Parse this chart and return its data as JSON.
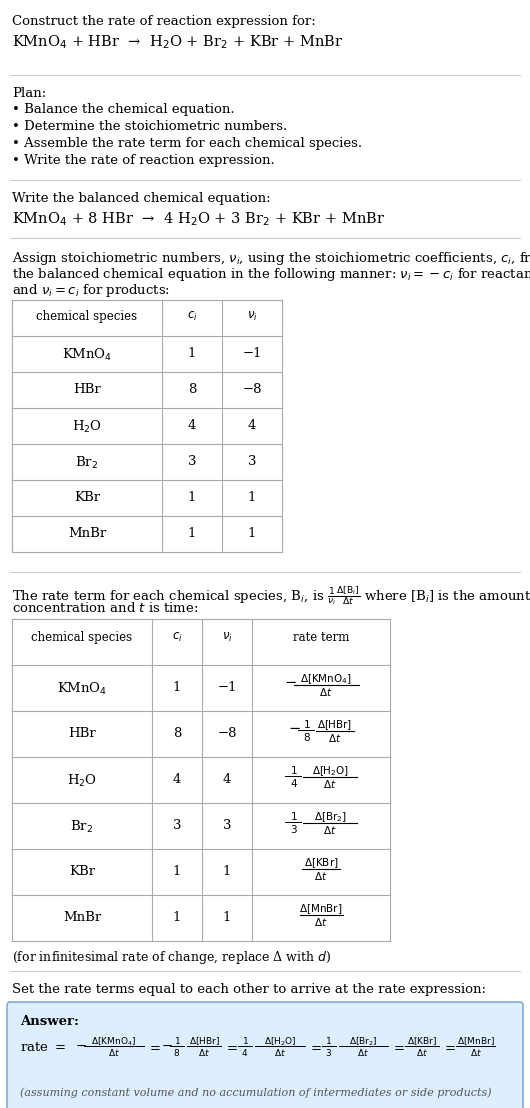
{
  "title_line1": "Construct the rate of reaction expression for:",
  "reaction_unbalanced": "KMnO$_4$ + HBr  →  H$_2$O + Br$_2$ + KBr + MnBr",
  "plan_header": "Plan:",
  "plan_items": [
    "• Balance the chemical equation.",
    "• Determine the stoichiometric numbers.",
    "• Assemble the rate term for each chemical species.",
    "• Write the rate of reaction expression."
  ],
  "balanced_header": "Write the balanced chemical equation:",
  "reaction_balanced": "KMnO$_4$ + 8 HBr  →  4 H$_2$O + 3 Br$_2$ + KBr + MnBr",
  "stoich_intro1": "Assign stoichiometric numbers, $\\nu_i$, using the stoichiometric coefficients, $c_i$, from",
  "stoich_intro2": "the balanced chemical equation in the following manner: $\\nu_i = -c_i$ for reactants",
  "stoich_intro3": "and $\\nu_i = c_i$ for products:",
  "table1_headers": [
    "chemical species",
    "$c_i$",
    "$\\nu_i$"
  ],
  "table1_rows": [
    [
      "KMnO$_4$",
      "1",
      "−1"
    ],
    [
      "HBr",
      "8",
      "−8"
    ],
    [
      "H$_2$O",
      "4",
      "4"
    ],
    [
      "Br$_2$",
      "3",
      "3"
    ],
    [
      "KBr",
      "1",
      "1"
    ],
    [
      "MnBr",
      "1",
      "1"
    ]
  ],
  "rate_intro1": "The rate term for each chemical species, B$_i$, is $\\frac{1}{\\nu_i}\\frac{\\Delta[\\mathrm{B}_i]}{\\Delta t}$ where [B$_i$] is the amount",
  "rate_intro2": "concentration and $t$ is time:",
  "table2_headers": [
    "chemical species",
    "$c_i$",
    "$\\nu_i$",
    "rate term"
  ],
  "table2_rows": [
    [
      "KMnO$_4$",
      "1",
      "−1",
      "neg_only"
    ],
    [
      "HBr",
      "8",
      "−8",
      "neg_coeff_8"
    ],
    [
      "H$_2$O",
      "4",
      "4",
      "pos_coeff_4"
    ],
    [
      "Br$_2$",
      "3",
      "3",
      "pos_coeff_3"
    ],
    [
      "KBr",
      "1",
      "1",
      "pos_only"
    ],
    [
      "MnBr",
      "1",
      "1",
      "pos_only"
    ]
  ],
  "table2_species": [
    "KMnO$_4$",
    "HBr",
    "H$_2$O",
    "Br$_2$",
    "KBr",
    "MnBr"
  ],
  "table2_ci": [
    "1",
    "8",
    "4",
    "3",
    "1",
    "1"
  ],
  "table2_nu": [
    "−1",
    "−8",
    "4",
    "3",
    "1",
    "1"
  ],
  "table2_neg": [
    true,
    true,
    false,
    false,
    false,
    false
  ],
  "table2_coeff": [
    null,
    "8",
    "4",
    "3",
    null,
    null
  ],
  "table2_bracket": [
    "[KMnO$_4$]",
    "[HBr]",
    "[H$_2$O]",
    "[Br$_2$]",
    "[KBr]",
    "[MnBr]"
  ],
  "infinitesimal_note": "(for infinitesimal rate of change, replace Δ with $d$)",
  "set_equal_text": "Set the rate terms equal to each other to arrive at the rate expression:",
  "answer_label": "Answer:",
  "answer_note": "(assuming constant volume and no accumulation of intermediates or side products)",
  "bg_color": "#ffffff",
  "table_border_color": "#aaaaaa",
  "answer_bg_color": "#ddeeff",
  "answer_border_color": "#88aacc",
  "text_color": "#000000",
  "sep_color": "#cccccc"
}
